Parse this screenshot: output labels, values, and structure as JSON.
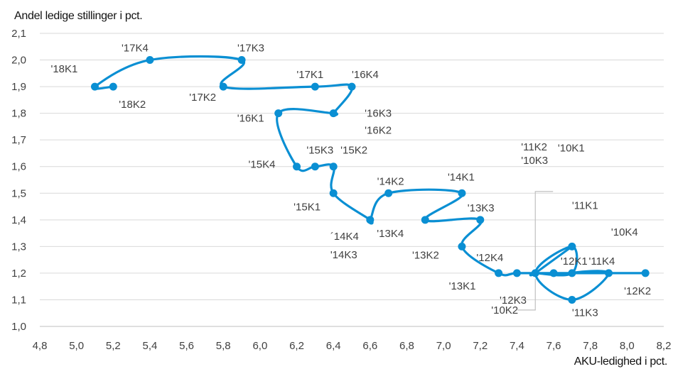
{
  "chart_data": {
    "type": "line",
    "ylabel": "Andel ledige stillinger i pct.",
    "xlabel": "AKU-ledighed i pct.",
    "xlim": [
      4.8,
      8.2
    ],
    "ylim": [
      1.0,
      2.1
    ],
    "xticks": [
      "4,8",
      "5,0",
      "5,2",
      "5,4",
      "5,6",
      "5,8",
      "6,0",
      "6,2",
      "6,4",
      "6,6",
      "6,8",
      "7,0",
      "7,2",
      "7,4",
      "7,6",
      "7,8",
      "8,0",
      "8,2"
    ],
    "yticks": [
      "1,0",
      "1,1",
      "1,2",
      "1,3",
      "1,4",
      "1,5",
      "1,6",
      "1,7",
      "1,8",
      "1,9",
      "2,0",
      "2,1"
    ],
    "grid": "horizontal",
    "color": "#0a8fd3",
    "series": [
      {
        "points": [
          {
            "label": "'10K1",
            "x": 7.7,
            "y": 1.3
          },
          {
            "label": "'10K2",
            "x": 7.5,
            "y": 1.2
          },
          {
            "label": "'10K3",
            "x": 7.5,
            "y": 1.2
          },
          {
            "label": "'10K4",
            "x": 7.7,
            "y": 1.2
          },
          {
            "label": "'11K1",
            "x": 7.7,
            "y": 1.3
          },
          {
            "label": "'11K2",
            "x": 7.5,
            "y": 1.2
          },
          {
            "label": "'11K3",
            "x": 7.7,
            "y": 1.1
          },
          {
            "label": "'11K4",
            "x": 7.9,
            "y": 1.2
          },
          {
            "label": "'12K1",
            "x": 7.7,
            "y": 1.2
          },
          {
            "label": "'12K2",
            "x": 8.1,
            "y": 1.2
          },
          {
            "label": "'12K3",
            "x": 7.6,
            "y": 1.2
          },
          {
            "label": "'12K4",
            "x": 7.4,
            "y": 1.2
          },
          {
            "label": "'13K1",
            "x": 7.3,
            "y": 1.2
          },
          {
            "label": "'13K2",
            "x": 7.1,
            "y": 1.3
          },
          {
            "label": "'13K3",
            "x": 7.2,
            "y": 1.4
          },
          {
            "label": "'13K4",
            "x": 6.9,
            "y": 1.4
          },
          {
            "label": "'14K1",
            "x": 7.1,
            "y": 1.5
          },
          {
            "label": "'14K2",
            "x": 6.7,
            "y": 1.5
          },
          {
            "label": "'14K3",
            "x": 6.6,
            "y": 1.4
          },
          {
            "label": "´14K4",
            "x": 6.6,
            "y": 1.4
          },
          {
            "label": "'15K1",
            "x": 6.4,
            "y": 1.5
          },
          {
            "label": "'15K2",
            "x": 6.4,
            "y": 1.6
          },
          {
            "label": "'15K3",
            "x": 6.3,
            "y": 1.6
          },
          {
            "label": "'15K4",
            "x": 6.2,
            "y": 1.6
          },
          {
            "label": "'16K1",
            "x": 6.1,
            "y": 1.8
          },
          {
            "label": "'16K2",
            "x": 6.4,
            "y": 1.8
          },
          {
            "label": "'16K3",
            "x": 6.4,
            "y": 1.8
          },
          {
            "label": "'16K4",
            "x": 6.5,
            "y": 1.9
          },
          {
            "label": "'17K1",
            "x": 6.3,
            "y": 1.9
          },
          {
            "label": "'17K2",
            "x": 5.8,
            "y": 1.9
          },
          {
            "label": "'17K3",
            "x": 5.9,
            "y": 2.0
          },
          {
            "label": "'17K4",
            "x": 5.4,
            "y": 2.0
          },
          {
            "label": "'18K1",
            "x": 5.1,
            "y": 1.9
          },
          {
            "label": "'18K2",
            "x": 5.2,
            "y": 1.9
          }
        ]
      }
    ]
  }
}
